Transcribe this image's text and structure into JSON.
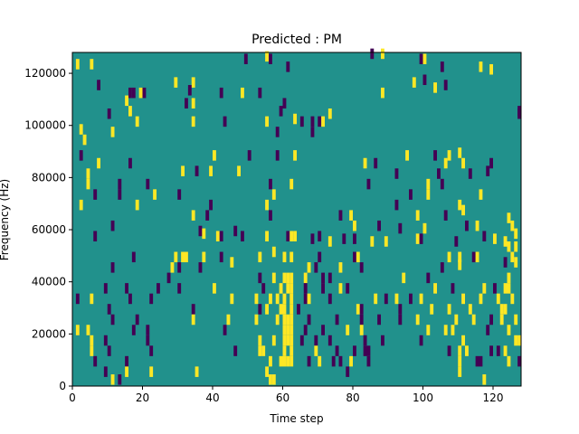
{
  "chart_data": {
    "type": "heatmap",
    "title": "Predicted : PM",
    "xlabel": "Time step",
    "ylabel": "Frequency (Hz)",
    "xlim": [
      0,
      128
    ],
    "ylim": [
      0,
      128000
    ],
    "x_ticks": [
      "0",
      "20",
      "40",
      "60",
      "80",
      "100",
      "120"
    ],
    "y_ticks": [
      "0",
      "20000",
      "40000",
      "60000",
      "80000",
      "100000",
      "120000"
    ],
    "colors": {
      "neutral": "#21918c",
      "negative": "#440154",
      "positive": "#fde725"
    },
    "cells": [
      [
        1,
        122000,
        1
      ],
      [
        5,
        122000,
        1
      ],
      [
        49,
        124000,
        -1
      ],
      [
        55,
        125000,
        1
      ],
      [
        56,
        124000,
        -1
      ],
      [
        61,
        121000,
        -1
      ],
      [
        85,
        126000,
        -1
      ],
      [
        88,
        126000,
        1
      ],
      [
        99,
        124000,
        -1
      ],
      [
        100,
        124000,
        1
      ],
      [
        105,
        121000,
        -1
      ],
      [
        116,
        121000,
        1
      ],
      [
        119,
        120000,
        1
      ],
      [
        7,
        114000,
        -1
      ],
      [
        29,
        115000,
        1
      ],
      [
        34,
        115000,
        1
      ],
      [
        97,
        115000,
        1
      ],
      [
        100,
        116000,
        -1
      ],
      [
        106,
        114000,
        -1
      ],
      [
        103,
        113000,
        1
      ],
      [
        16,
        111000,
        -1
      ],
      [
        17,
        111000,
        -1
      ],
      [
        19,
        111000,
        1
      ],
      [
        20,
        111000,
        -1
      ],
      [
        33,
        112000,
        -1
      ],
      [
        42,
        111000,
        -1
      ],
      [
        48,
        111000,
        1
      ],
      [
        53,
        111000,
        -1
      ],
      [
        88,
        111000,
        1
      ],
      [
        15,
        108000,
        1
      ],
      [
        32,
        107000,
        -1
      ],
      [
        34,
        107000,
        1
      ],
      [
        60,
        107000,
        -1
      ],
      [
        10,
        103000,
        -1
      ],
      [
        16,
        104000,
        1
      ],
      [
        59,
        104000,
        -1
      ],
      [
        73,
        103000,
        1
      ],
      [
        127,
        103000,
        -1
      ],
      [
        127,
        104000,
        -1
      ],
      [
        18,
        100000,
        1
      ],
      [
        34,
        100000,
        1
      ],
      [
        43,
        100000,
        -1
      ],
      [
        55,
        100000,
        1
      ],
      [
        65,
        100000,
        -1
      ],
      [
        68,
        100000,
        -1
      ],
      [
        70,
        100000,
        -1
      ],
      [
        71,
        100000,
        1
      ],
      [
        63,
        101000,
        1
      ],
      [
        2,
        97000,
        1
      ],
      [
        11,
        96000,
        1
      ],
      [
        58,
        96000,
        -1
      ],
      [
        68,
        96000,
        -1
      ],
      [
        3,
        93000,
        1
      ],
      [
        2,
        87000,
        -1
      ],
      [
        40,
        87000,
        1
      ],
      [
        50,
        87000,
        -1
      ],
      [
        58,
        87000,
        -1
      ],
      [
        63,
        87000,
        1
      ],
      [
        95,
        87000,
        1
      ],
      [
        103,
        87000,
        -1
      ],
      [
        107,
        87000,
        1
      ],
      [
        110,
        88000,
        1
      ],
      [
        7,
        84000,
        1
      ],
      [
        16,
        84000,
        -1
      ],
      [
        83,
        84000,
        1
      ],
      [
        86,
        84000,
        -1
      ],
      [
        111,
        84000,
        1
      ],
      [
        119,
        84000,
        -1
      ],
      [
        106,
        84000,
        1
      ],
      [
        4,
        80000,
        1
      ],
      [
        31,
        81000,
        1
      ],
      [
        35,
        81000,
        -1
      ],
      [
        39,
        81000,
        1
      ],
      [
        47,
        81000,
        1
      ],
      [
        92,
        80000,
        -1
      ],
      [
        104,
        80000,
        -1
      ],
      [
        113,
        80000,
        -1
      ],
      [
        118,
        81000,
        -1
      ],
      [
        4,
        76000,
        1
      ],
      [
        13,
        76000,
        -1
      ],
      [
        21,
        76000,
        -1
      ],
      [
        56,
        76000,
        -1
      ],
      [
        62,
        76000,
        1
      ],
      [
        84,
        76000,
        -1
      ],
      [
        101,
        76000,
        1
      ],
      [
        105,
        76000,
        -1
      ],
      [
        6,
        72000,
        -1
      ],
      [
        13,
        72000,
        -1
      ],
      [
        23,
        72000,
        1
      ],
      [
        30,
        72000,
        -1
      ],
      [
        57,
        72000,
        1
      ],
      [
        96,
        72000,
        -1
      ],
      [
        101,
        72000,
        1
      ],
      [
        116,
        72000,
        1
      ],
      [
        2,
        68000,
        1
      ],
      [
        18,
        68000,
        1
      ],
      [
        39,
        68000,
        -1
      ],
      [
        55,
        68000,
        1
      ],
      [
        92,
        68000,
        -1
      ],
      [
        110,
        68000,
        1
      ],
      [
        111,
        66000,
        1
      ],
      [
        34,
        64000,
        1
      ],
      [
        38,
        64000,
        -1
      ],
      [
        56,
        64000,
        -1
      ],
      [
        76,
        64000,
        -1
      ],
      [
        79,
        64000,
        1
      ],
      [
        98,
        64000,
        1
      ],
      [
        106,
        64000,
        -1
      ],
      [
        124,
        63000,
        1
      ],
      [
        11,
        60000,
        -1
      ],
      [
        36,
        58000,
        -1
      ],
      [
        37,
        57000,
        1
      ],
      [
        46,
        58000,
        -1
      ],
      [
        80,
        60000,
        1
      ],
      [
        87,
        60000,
        -1
      ],
      [
        93,
        59000,
        -1
      ],
      [
        100,
        59000,
        1
      ],
      [
        112,
        60000,
        -1
      ],
      [
        115,
        60000,
        1
      ],
      [
        125,
        60000,
        1
      ],
      [
        126,
        57000,
        1
      ],
      [
        6,
        56000,
        -1
      ],
      [
        41,
        56000,
        1
      ],
      [
        42,
        56000,
        -1
      ],
      [
        48,
        56000,
        -1
      ],
      [
        55,
        56000,
        1
      ],
      [
        61,
        56000,
        -1
      ],
      [
        62,
        56000,
        1
      ],
      [
        63,
        56000,
        1
      ],
      [
        68,
        55000,
        -1
      ],
      [
        70,
        56000,
        -1
      ],
      [
        73,
        54000,
        1
      ],
      [
        77,
        55000,
        -1
      ],
      [
        80,
        55000,
        -1
      ],
      [
        85,
        54000,
        1
      ],
      [
        89,
        54000,
        1
      ],
      [
        98,
        55000,
        1
      ],
      [
        99,
        55000,
        -1
      ],
      [
        109,
        54000,
        -1
      ],
      [
        117,
        56000,
        -1
      ],
      [
        120,
        55000,
        1
      ],
      [
        123,
        54000,
        1
      ],
      [
        124,
        52000,
        1
      ],
      [
        17,
        48000,
        -1
      ],
      [
        29,
        48000,
        1
      ],
      [
        31,
        48000,
        1
      ],
      [
        32,
        48000,
        1
      ],
      [
        37,
        48000,
        1
      ],
      [
        42,
        48000,
        -1
      ],
      [
        45,
        46000,
        1
      ],
      [
        53,
        48000,
        1
      ],
      [
        57,
        50000,
        1
      ],
      [
        60,
        48000,
        1
      ],
      [
        62,
        48000,
        1
      ],
      [
        70,
        48000,
        -1
      ],
      [
        80,
        48000,
        -1
      ],
      [
        81,
        48000,
        1
      ],
      [
        107,
        48000,
        1
      ],
      [
        110,
        48000,
        1
      ],
      [
        114,
        48000,
        -1
      ],
      [
        115,
        48000,
        1
      ],
      [
        125,
        48000,
        1
      ],
      [
        126,
        52000,
        1
      ],
      [
        11,
        44000,
        -1
      ],
      [
        28,
        44000,
        1
      ],
      [
        30,
        44000,
        -1
      ],
      [
        36,
        44000,
        -1
      ],
      [
        67,
        44000,
        1
      ],
      [
        69,
        44000,
        -1
      ],
      [
        76,
        44000,
        1
      ],
      [
        82,
        44000,
        -1
      ],
      [
        105,
        44000,
        -1
      ],
      [
        110,
        45000,
        1
      ],
      [
        123,
        46000,
        -1
      ],
      [
        126,
        46000,
        1
      ],
      [
        27,
        40000,
        -1
      ],
      [
        53,
        40000,
        -1
      ],
      [
        57,
        40000,
        1
      ],
      [
        60,
        40000,
        1
      ],
      [
        61,
        40000,
        1
      ],
      [
        62,
        40000,
        1
      ],
      [
        66,
        40000,
        1
      ],
      [
        71,
        40000,
        -1
      ],
      [
        73,
        40000,
        -1
      ],
      [
        94,
        40000,
        1
      ],
      [
        101,
        40000,
        -1
      ],
      [
        124,
        40000,
        1
      ],
      [
        9,
        36000,
        -1
      ],
      [
        15,
        36000,
        -1
      ],
      [
        24,
        36000,
        -1
      ],
      [
        30,
        36000,
        -1
      ],
      [
        40,
        36000,
        1
      ],
      [
        54,
        36000,
        -1
      ],
      [
        59,
        36000,
        1
      ],
      [
        61,
        36000,
        1
      ],
      [
        62,
        36000,
        1
      ],
      [
        66,
        36000,
        -1
      ],
      [
        71,
        36000,
        -1
      ],
      [
        76,
        36000,
        1
      ],
      [
        78,
        36000,
        -1
      ],
      [
        103,
        36000,
        1
      ],
      [
        108,
        36000,
        -1
      ],
      [
        117,
        36000,
        1
      ],
      [
        120,
        36000,
        -1
      ],
      [
        123,
        36000,
        1
      ],
      [
        124,
        36000,
        1
      ],
      [
        1,
        32000,
        -1
      ],
      [
        5,
        32000,
        1
      ],
      [
        16,
        32000,
        -1
      ],
      [
        22,
        32000,
        -1
      ],
      [
        45,
        32000,
        1
      ],
      [
        52,
        32000,
        1
      ],
      [
        56,
        32000,
        1
      ],
      [
        58,
        32000,
        1
      ],
      [
        60,
        32000,
        1
      ],
      [
        62,
        32000,
        1
      ],
      [
        66,
        32000,
        -1
      ],
      [
        67,
        32000,
        1
      ],
      [
        73,
        32000,
        -1
      ],
      [
        86,
        32000,
        1
      ],
      [
        89,
        32000,
        -1
      ],
      [
        92,
        32000,
        1
      ],
      [
        96,
        32000,
        -1
      ],
      [
        99,
        32000,
        1
      ],
      [
        111,
        32000,
        1
      ],
      [
        116,
        32000,
        1
      ],
      [
        121,
        32000,
        1
      ],
      [
        125,
        32000,
        1
      ],
      [
        10,
        28000,
        -1
      ],
      [
        34,
        28000,
        -1
      ],
      [
        53,
        28000,
        -1
      ],
      [
        55,
        28000,
        1
      ],
      [
        59,
        28000,
        1
      ],
      [
        60,
        28000,
        1
      ],
      [
        62,
        28000,
        1
      ],
      [
        64,
        28000,
        -1
      ],
      [
        81,
        28000,
        1
      ],
      [
        82,
        28000,
        -1
      ],
      [
        93,
        28000,
        -1
      ],
      [
        102,
        28000,
        1
      ],
      [
        107,
        28000,
        1
      ],
      [
        113,
        28000,
        1
      ],
      [
        122,
        28000,
        1
      ],
      [
        123,
        28000,
        1
      ],
      [
        11,
        24000,
        -1
      ],
      [
        18,
        24000,
        -1
      ],
      [
        34,
        24000,
        1
      ],
      [
        44,
        24000,
        1
      ],
      [
        52,
        24000,
        1
      ],
      [
        58,
        24000,
        1
      ],
      [
        60,
        24000,
        1
      ],
      [
        61,
        24000,
        1
      ],
      [
        62,
        24000,
        1
      ],
      [
        67,
        24000,
        -1
      ],
      [
        75,
        24000,
        -1
      ],
      [
        82,
        24000,
        -1
      ],
      [
        87,
        24000,
        -1
      ],
      [
        93,
        24000,
        -1
      ],
      [
        98,
        24000,
        1
      ],
      [
        109,
        24000,
        1
      ],
      [
        114,
        24000,
        1
      ],
      [
        119,
        24000,
        -1
      ],
      [
        122,
        24000,
        1
      ],
      [
        126,
        24000,
        1
      ],
      [
        1,
        20000,
        1
      ],
      [
        4,
        20000,
        1
      ],
      [
        17,
        20000,
        -1
      ],
      [
        21,
        20000,
        -1
      ],
      [
        43,
        20000,
        -1
      ],
      [
        60,
        20000,
        1
      ],
      [
        61,
        20000,
        1
      ],
      [
        62,
        20000,
        1
      ],
      [
        66,
        20000,
        -1
      ],
      [
        71,
        20000,
        -1
      ],
      [
        78,
        20000,
        1
      ],
      [
        82,
        20000,
        1
      ],
      [
        101,
        20000,
        1
      ],
      [
        106,
        20000,
        1
      ],
      [
        108,
        20000,
        1
      ],
      [
        118,
        20000,
        -1
      ],
      [
        124,
        20000,
        1
      ],
      [
        5,
        16000,
        1
      ],
      [
        9,
        16000,
        -1
      ],
      [
        21,
        16000,
        -1
      ],
      [
        53,
        16000,
        1
      ],
      [
        57,
        16000,
        1
      ],
      [
        60,
        16000,
        1
      ],
      [
        61,
        16000,
        1
      ],
      [
        62,
        16000,
        1
      ],
      [
        65,
        16000,
        -1
      ],
      [
        69,
        16000,
        -1
      ],
      [
        73,
        16000,
        -1
      ],
      [
        83,
        16000,
        -1
      ],
      [
        88,
        16000,
        -1
      ],
      [
        99,
        16000,
        -1
      ],
      [
        111,
        16000,
        1
      ],
      [
        126,
        16000,
        1
      ],
      [
        127,
        16000,
        1
      ],
      [
        5,
        12000,
        1
      ],
      [
        10,
        12000,
        -1
      ],
      [
        22,
        12000,
        -1
      ],
      [
        46,
        12000,
        -1
      ],
      [
        53,
        12000,
        1
      ],
      [
        54,
        12000,
        1
      ],
      [
        60,
        12000,
        1
      ],
      [
        62,
        12000,
        1
      ],
      [
        69,
        12000,
        1
      ],
      [
        75,
        12000,
        -1
      ],
      [
        80,
        12000,
        -1
      ],
      [
        83,
        12000,
        -1
      ],
      [
        84,
        12000,
        -1
      ],
      [
        107,
        12000,
        -1
      ],
      [
        110,
        12000,
        1
      ],
      [
        112,
        12000,
        1
      ],
      [
        119,
        12000,
        -1
      ],
      [
        121,
        12000,
        -1
      ],
      [
        123,
        12000,
        1
      ],
      [
        6,
        8000,
        -1
      ],
      [
        15,
        8000,
        -1
      ],
      [
        56,
        8000,
        1
      ],
      [
        59,
        8000,
        1
      ],
      [
        60,
        8000,
        1
      ],
      [
        61,
        8000,
        1
      ],
      [
        62,
        8000,
        1
      ],
      [
        67,
        8000,
        -1
      ],
      [
        70,
        8000,
        1
      ],
      [
        74,
        8000,
        -1
      ],
      [
        76,
        8000,
        -1
      ],
      [
        79,
        8000,
        1
      ],
      [
        84,
        8000,
        -1
      ],
      [
        110,
        8000,
        1
      ],
      [
        115,
        8000,
        -1
      ],
      [
        116,
        8000,
        -1
      ],
      [
        124,
        8000,
        1
      ],
      [
        127,
        8000,
        -1
      ],
      [
        9,
        4000,
        -1
      ],
      [
        15,
        4000,
        1
      ],
      [
        22,
        4000,
        1
      ],
      [
        35,
        4000,
        1
      ],
      [
        55,
        4000,
        1
      ],
      [
        78,
        4000,
        -1
      ],
      [
        110,
        4000,
        1
      ],
      [
        11,
        1000,
        1
      ],
      [
        13,
        1000,
        -1
      ],
      [
        56,
        1000,
        1
      ],
      [
        57,
        1000,
        1
      ],
      [
        117,
        1000,
        1
      ]
    ]
  }
}
